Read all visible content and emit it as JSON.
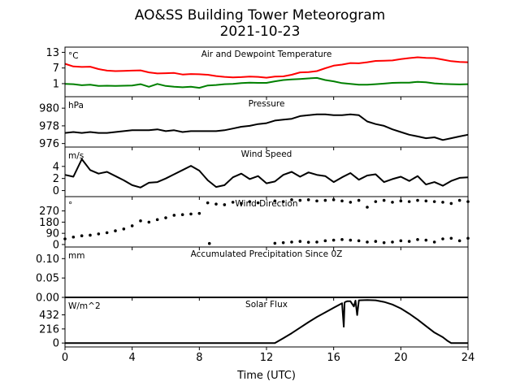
{
  "title": "AO&SS Building Tower Meteorogram",
  "subtitle": "2021-10-23",
  "xlabel": "Time (UTC)",
  "chart_data": [
    {
      "type": "line",
      "title": "Air and Dewpoint Temperature",
      "unit": "°C",
      "ylim": [
        -4,
        15
      ],
      "yticks": [
        "13",
        "7",
        "1"
      ],
      "yticks_num": [
        13,
        7,
        1
      ],
      "series": [
        {
          "color": "#ff0000",
          "x": [
            0,
            0.5,
            1,
            1.5,
            2,
            2.5,
            3,
            3.5,
            4,
            4.5,
            5,
            5.5,
            6,
            6.5,
            7,
            7.5,
            8,
            8.5,
            9,
            9.5,
            10,
            10.5,
            11,
            11.5,
            12,
            12.5,
            13,
            13.5,
            14,
            14.5,
            15,
            15.5,
            16,
            16.5,
            17,
            17.5,
            18,
            18.5,
            19,
            19.5,
            20,
            20.5,
            21,
            21.5,
            22,
            22.5,
            23,
            23.5,
            24
          ],
          "values": [
            8.6,
            7.6,
            7.4,
            7.5,
            6.6,
            6.0,
            5.8,
            5.9,
            6.0,
            6.1,
            5.3,
            4.9,
            5.0,
            5.1,
            4.5,
            4.7,
            4.6,
            4.4,
            3.9,
            3.6,
            3.4,
            3.5,
            3.7,
            3.6,
            3.3,
            3.7,
            3.8,
            4.4,
            5.3,
            5.4,
            5.8,
            6.9,
            7.9,
            8.3,
            8.9,
            8.8,
            9.2,
            9.7,
            9.8,
            9.9,
            10.4,
            10.8,
            11.1,
            10.9,
            10.8,
            10.2,
            9.6,
            9.3,
            9.2
          ]
        },
        {
          "color": "#008000",
          "x": [
            0,
            0.5,
            1,
            1.5,
            2,
            2.5,
            3,
            3.5,
            4,
            4.5,
            5,
            5.5,
            6,
            6.5,
            7,
            7.5,
            8,
            8.5,
            9,
            9.5,
            10,
            10.5,
            11,
            11.5,
            12,
            12.5,
            13,
            13.5,
            14,
            14.5,
            15,
            15.5,
            16,
            16.5,
            17,
            17.5,
            18,
            18.5,
            19,
            19.5,
            20,
            20.5,
            21,
            21.5,
            22,
            22.5,
            23,
            23.5,
            24
          ],
          "values": [
            0.9,
            0.8,
            0.4,
            0.6,
            0.1,
            0.2,
            0.1,
            0.2,
            0.3,
            0.8,
            -0.2,
            0.9,
            0.1,
            -0.2,
            -0.4,
            -0.2,
            -0.6,
            0.3,
            0.5,
            0.8,
            0.9,
            1.2,
            1.4,
            1.3,
            1.3,
            1.9,
            2.4,
            2.6,
            2.8,
            3.0,
            3.2,
            2.4,
            1.9,
            1.2,
            0.9,
            0.6,
            0.6,
            0.8,
            1.0,
            1.3,
            1.4,
            1.4,
            1.7,
            1.5,
            1.1,
            0.9,
            0.8,
            0.7,
            0.8
          ]
        }
      ]
    },
    {
      "type": "line",
      "title": "Pressure",
      "unit": "hPa",
      "ylim": [
        975.6,
        981.3
      ],
      "yticks": [
        "980",
        "978",
        "976"
      ],
      "yticks_num": [
        980,
        978,
        976
      ],
      "series": [
        {
          "color": "#000000",
          "x": [
            0,
            0.5,
            1,
            1.5,
            2,
            2.5,
            3,
            3.5,
            4,
            4.5,
            5,
            5.5,
            6,
            6.5,
            7,
            7.5,
            8,
            8.5,
            9,
            9.5,
            10,
            10.5,
            11,
            11.5,
            12,
            12.5,
            13,
            13.5,
            14,
            14.5,
            15,
            15.5,
            16,
            16.5,
            17,
            17.5,
            18,
            18.5,
            19,
            19.5,
            20,
            20.5,
            21,
            21.5,
            22,
            22.5,
            23,
            23.5,
            24
          ],
          "values": [
            977.2,
            977.3,
            977.2,
            977.3,
            977.2,
            977.2,
            977.3,
            977.4,
            977.5,
            977.5,
            977.5,
            977.6,
            977.4,
            977.5,
            977.3,
            977.4,
            977.4,
            977.4,
            977.4,
            977.5,
            977.7,
            977.9,
            978.0,
            978.2,
            978.3,
            978.6,
            978.7,
            978.8,
            979.1,
            979.2,
            979.3,
            979.3,
            979.2,
            979.2,
            979.3,
            979.2,
            978.5,
            978.2,
            978.0,
            977.6,
            977.3,
            977.0,
            976.8,
            976.6,
            976.7,
            976.4,
            976.6,
            976.8,
            977.0
          ]
        }
      ]
    },
    {
      "type": "line",
      "title": "Wind Speed",
      "unit": "m/s",
      "ylim": [
        -1,
        7.2
      ],
      "yticks": [
        "4",
        "2",
        "0"
      ],
      "yticks_num": [
        4,
        2,
        0
      ],
      "series": [
        {
          "color": "#000000",
          "x": [
            0,
            0.5,
            1,
            1.5,
            2,
            2.5,
            3,
            3.5,
            4,
            4.5,
            5,
            5.5,
            6,
            6.5,
            7,
            7.5,
            8,
            8.5,
            9,
            9.5,
            10,
            10.5,
            11,
            11.5,
            12,
            12.5,
            13,
            13.5,
            14,
            14.5,
            15,
            15.5,
            16,
            16.5,
            17,
            17.5,
            18,
            18.5,
            19,
            19.5,
            20,
            20.5,
            21,
            21.5,
            22,
            22.5,
            23,
            23.5,
            24
          ],
          "values": [
            2.6,
            2.3,
            5.2,
            3.4,
            2.8,
            3.1,
            2.4,
            1.7,
            0.9,
            0.5,
            1.3,
            1.4,
            2.0,
            2.7,
            3.4,
            4.1,
            3.3,
            1.7,
            0.6,
            0.9,
            2.2,
            2.8,
            1.9,
            2.4,
            1.2,
            1.5,
            2.6,
            3.1,
            2.3,
            3.0,
            2.6,
            2.4,
            1.4,
            2.2,
            2.9,
            1.8,
            2.5,
            2.7,
            1.4,
            1.9,
            2.3,
            1.6,
            2.4,
            1.0,
            1.4,
            0.8,
            1.6,
            2.1,
            2.2
          ]
        }
      ]
    },
    {
      "type": "scatter",
      "title": "Wind Direction",
      "unit": "°",
      "ylim": [
        -20,
        385
      ],
      "yticks": [
        "270",
        "180",
        "90",
        "0"
      ],
      "yticks_num": [
        270,
        180,
        90,
        0
      ],
      "series": [
        {
          "color": "#000000",
          "x": [
            0,
            0.5,
            1,
            1.5,
            2,
            2.5,
            3,
            3.5,
            4,
            4.5,
            5,
            5.5,
            6,
            6.5,
            7,
            7.5,
            8,
            8.5,
            9,
            9.5,
            10,
            10.5,
            11,
            11.5,
            12.5,
            13,
            13.5,
            14,
            14.5,
            15,
            15.5,
            16,
            16.5,
            17,
            17.5,
            18,
            18.5,
            19,
            19.5,
            20,
            20.5,
            21,
            21.5,
            22,
            22.5,
            23,
            23.5,
            24
          ],
          "values": [
            45,
            60,
            70,
            75,
            85,
            95,
            110,
            125,
            150,
            190,
            180,
            200,
            215,
            235,
            240,
            245,
            250,
            335,
            325,
            320,
            340,
            330,
            345,
            335,
            350,
            345,
            360,
            355,
            360,
            350,
            355,
            360,
            350,
            340,
            355,
            300,
            345,
            355,
            340,
            350,
            345,
            355,
            350,
            345,
            340,
            330,
            355,
            345
          ]
        },
        {
          "color": "#000000",
          "x": [
            8.6,
            12.5,
            13,
            13.5,
            14,
            14.5,
            15,
            15.5,
            16,
            16.5,
            17,
            17.5,
            18,
            18.5,
            19,
            19.5,
            20,
            20.5,
            21,
            21.5,
            22,
            22.5,
            23,
            23.5,
            24
          ],
          "values": [
            8,
            10,
            15,
            20,
            25,
            18,
            20,
            30,
            35,
            40,
            35,
            30,
            20,
            25,
            15,
            20,
            30,
            25,
            40,
            35,
            20,
            45,
            50,
            30,
            50
          ]
        }
      ]
    },
    {
      "type": "line",
      "title": "Accumulated Precipitation Since 0Z",
      "unit": "mm",
      "ylim": [
        0,
        0.13
      ],
      "yticks": [
        "0.10",
        "0.05",
        "0.00"
      ],
      "yticks_num": [
        0.1,
        0.05,
        0
      ],
      "series": [
        {
          "color": "#000000",
          "x": [
            0,
            24
          ],
          "values": [
            0,
            0
          ]
        }
      ]
    },
    {
      "type": "line",
      "title": "Solar Flux",
      "unit": "W/m^2",
      "ylim": [
        -60,
        700
      ],
      "yticks": [
        "432",
        "216",
        "0"
      ],
      "yticks_num": [
        432,
        216,
        0
      ],
      "series": [
        {
          "color": "#000000",
          "x": [
            0,
            12.5,
            13,
            13.5,
            14,
            14.5,
            15,
            15.5,
            16,
            16.5,
            16.6,
            16.65,
            16.7,
            16.8,
            17,
            17.2,
            17.3,
            17.4,
            17.5,
            18,
            18.5,
            19,
            19.5,
            20,
            20.5,
            21,
            21.5,
            22,
            22.5,
            22.8,
            23,
            24
          ],
          "values": [
            0,
            0,
            75,
            150,
            235,
            320,
            400,
            470,
            540,
            610,
            250,
            620,
            630,
            640,
            640,
            560,
            650,
            430,
            655,
            660,
            655,
            630,
            590,
            530,
            450,
            360,
            260,
            160,
            90,
            30,
            0,
            0
          ]
        }
      ]
    }
  ],
  "xaxis": {
    "ticks": [
      "0",
      "4",
      "8",
      "12",
      "16",
      "20",
      "24"
    ],
    "ticks_num": [
      0,
      4,
      8,
      12,
      16,
      20,
      24
    ],
    "xlim": [
      0,
      24
    ]
  }
}
